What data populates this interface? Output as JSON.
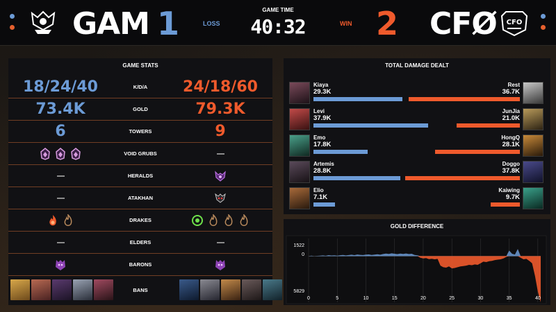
{
  "header": {
    "left_team": {
      "name": "GAM",
      "score": "1",
      "result": "LOSS",
      "color": "#6c9bd6"
    },
    "right_team": {
      "name": "CFØ",
      "score": "2",
      "result": "WIN",
      "color": "#ef5a2c"
    },
    "game_time_label": "GAME TIME",
    "game_time": "40:32"
  },
  "game_stats": {
    "title": "GAME STATS",
    "kda": {
      "label": "K/D/A",
      "left": "18/24/40",
      "right": "24/18/60"
    },
    "gold": {
      "label": "GOLD",
      "left": "73.4K",
      "right": "79.3K"
    },
    "towers": {
      "label": "TOWERS",
      "left": "6",
      "right": "9"
    },
    "void_grubs": {
      "label": "VOID GRUBS",
      "left_count": 3,
      "right_count": 0
    },
    "heralds": {
      "label": "HERALDS",
      "left_count": 0,
      "right_count": 1
    },
    "atakhan": {
      "label": "ATAKHAN",
      "left_count": 0,
      "right_count": 1
    },
    "drakes": {
      "label": "DRAKES",
      "left": [
        "infernal-drake-icon",
        "mountain-drake-icon"
      ],
      "right": [
        "chemtech-drake-icon",
        "mountain-drake-icon",
        "mountain-drake-icon",
        "mountain-drake-icon"
      ]
    },
    "elders": {
      "label": "ELDERS",
      "left_count": 0,
      "right_count": 0
    },
    "barons": {
      "label": "BARONS",
      "left_count": 1,
      "right_count": 1
    },
    "bans": {
      "label": "BANS",
      "left_count": 5,
      "right_count": 5
    }
  },
  "damage": {
    "title": "TOTAL DAMAGE DEALT",
    "max": 37.9,
    "left": [
      {
        "name": "Kiaya",
        "value": "29.3K",
        "amount": 29.3
      },
      {
        "name": "Levi",
        "value": "37.9K",
        "amount": 37.9
      },
      {
        "name": "Emo",
        "value": "17.8K",
        "amount": 17.8
      },
      {
        "name": "Artemis",
        "value": "28.8K",
        "amount": 28.8
      },
      {
        "name": "Elio",
        "value": "7.1K",
        "amount": 7.1
      }
    ],
    "right": [
      {
        "name": "Rest",
        "value": "36.7K",
        "amount": 36.7
      },
      {
        "name": "JunJia",
        "value": "21.0K",
        "amount": 21.0
      },
      {
        "name": "HongQ",
        "value": "28.1K",
        "amount": 28.1
      },
      {
        "name": "Doggo",
        "value": "37.8K",
        "amount": 37.8
      },
      {
        "name": "Kaiwing",
        "value": "9.7K",
        "amount": 9.7
      }
    ]
  },
  "gold_diff": {
    "title": "GOLD DIFFERENCE",
    "y_top_label": "1522",
    "y_zero_label": "0",
    "y_bottom_label": "5829",
    "x_ticks": [
      "0",
      "5",
      "10",
      "15",
      "20",
      "25",
      "30",
      "35",
      "40"
    ],
    "y_max": 1522,
    "y_min": -5829,
    "x_max": 40.5,
    "series": [
      [
        0,
        0
      ],
      [
        0.5,
        50
      ],
      [
        1,
        0
      ],
      [
        1.5,
        30
      ],
      [
        2,
        60
      ],
      [
        2.5,
        90
      ],
      [
        3,
        40
      ],
      [
        3.5,
        120
      ],
      [
        4,
        80
      ],
      [
        4.5,
        100
      ],
      [
        5,
        60
      ],
      [
        5.5,
        110
      ],
      [
        6,
        150
      ],
      [
        6.5,
        90
      ],
      [
        7,
        130
      ],
      [
        7.5,
        170
      ],
      [
        8,
        120
      ],
      [
        8.5,
        200
      ],
      [
        9,
        160
      ],
      [
        9.5,
        130
      ],
      [
        10,
        180
      ],
      [
        10.5,
        210
      ],
      [
        11,
        150
      ],
      [
        11.5,
        190
      ],
      [
        12,
        230
      ],
      [
        12.5,
        170
      ],
      [
        13,
        260
      ],
      [
        13.5,
        320
      ],
      [
        14,
        280
      ],
      [
        14.5,
        350
      ],
      [
        15,
        300
      ],
      [
        15.5,
        250
      ],
      [
        16,
        310
      ],
      [
        16.5,
        280
      ],
      [
        17,
        330
      ],
      [
        17.5,
        260
      ],
      [
        18,
        300
      ],
      [
        18.5,
        150
      ],
      [
        19,
        100
      ],
      [
        19.5,
        -200
      ],
      [
        20,
        -300
      ],
      [
        20.5,
        -250
      ],
      [
        21,
        -380
      ],
      [
        21.5,
        -330
      ],
      [
        22,
        -400
      ],
      [
        22.5,
        -350
      ],
      [
        23,
        -1200
      ],
      [
        23.5,
        -1400
      ],
      [
        24,
        -1450
      ],
      [
        24.5,
        -1300
      ],
      [
        25,
        -1550
      ],
      [
        25.5,
        -1500
      ],
      [
        26,
        -1400
      ],
      [
        26.5,
        -1300
      ],
      [
        27,
        -1250
      ],
      [
        27.5,
        -1200
      ],
      [
        28,
        -1100
      ],
      [
        28.5,
        -1150
      ],
      [
        29,
        -1050
      ],
      [
        29.5,
        -1100
      ],
      [
        30,
        -900
      ],
      [
        30.5,
        -700
      ],
      [
        31,
        -750
      ],
      [
        31.5,
        -650
      ],
      [
        32,
        -600
      ],
      [
        32.5,
        -500
      ],
      [
        33,
        -450
      ],
      [
        33.5,
        -400
      ],
      [
        34,
        -300
      ],
      [
        34.5,
        -100
      ],
      [
        35,
        700
      ],
      [
        35.5,
        300
      ],
      [
        36,
        200
      ],
      [
        36.5,
        900
      ],
      [
        37,
        -200
      ],
      [
        37.5,
        -400
      ],
      [
        38,
        -350
      ],
      [
        38.5,
        -600
      ],
      [
        39,
        -900
      ],
      [
        39.5,
        -2500
      ],
      [
        40,
        -4500
      ],
      [
        40.5,
        -5829
      ]
    ]
  },
  "colors": {
    "blue": "#6c9bd6",
    "orange": "#ef5a2c",
    "grub": "#d79bde",
    "purple": "#8e44b6"
  }
}
